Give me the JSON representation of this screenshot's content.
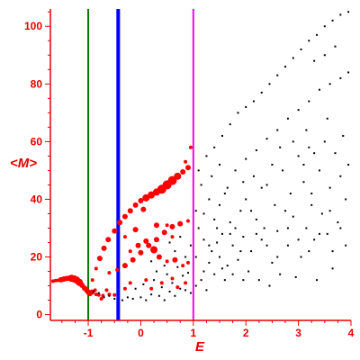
{
  "chart_data": {
    "type": "scatter",
    "title": "",
    "xlabel": "E",
    "ylabel": "<M>",
    "xlim": [
      -1.72,
      4.0
    ],
    "ylim": [
      -2,
      106
    ],
    "x_ticks": [
      -1,
      0,
      1,
      2,
      3,
      4
    ],
    "y_ticks": [
      0,
      20,
      40,
      60,
      80,
      100
    ],
    "grid": false,
    "legend": "none",
    "colors": {
      "axis": "#e60000",
      "red_series": "#ff0000",
      "black_series": "#000000",
      "line_green": "#007a00",
      "line_blue": "#0000ff",
      "line_magenta": "#ff00ff"
    },
    "vertical_lines": [
      {
        "x": -1.0,
        "color": "#007a00",
        "width": 2
      },
      {
        "x": -0.43,
        "color": "#0000ff",
        "width": 4
      },
      {
        "x": 1.0,
        "color": "#ff00ff",
        "width": 2
      }
    ],
    "series": [
      {
        "color": "#ff0000",
        "points": [
          [
            -1.67,
            11.6,
            2
          ],
          [
            -1.62,
            11.8,
            2
          ],
          [
            -1.57,
            11.9,
            2
          ],
          [
            -1.52,
            12.1,
            3
          ],
          [
            -1.47,
            12.3,
            3
          ],
          [
            -1.42,
            12.5,
            3
          ],
          [
            -1.37,
            12.6,
            3
          ],
          [
            -1.32,
            12.6,
            4
          ],
          [
            -1.27,
            12.4,
            4
          ],
          [
            -1.22,
            12.0,
            4
          ],
          [
            -1.17,
            11.2,
            4
          ],
          [
            -1.12,
            10.2,
            3
          ],
          [
            -1.07,
            9.2,
            3
          ],
          [
            -1.03,
            8.5,
            3
          ],
          [
            -1.0,
            7.8,
            3
          ],
          [
            -0.97,
            7.3,
            3
          ],
          [
            -0.93,
            7.8,
            3
          ],
          [
            -0.87,
            8.5,
            2
          ],
          [
            -0.8,
            6.8,
            2
          ],
          [
            -0.72,
            6.6,
            2
          ],
          [
            -0.6,
            7.0,
            2
          ],
          [
            -0.5,
            6.8,
            2
          ],
          [
            -0.92,
            12.0,
            2
          ],
          [
            -0.85,
            16.0,
            2
          ],
          [
            -0.78,
            19.5,
            3
          ],
          [
            -0.7,
            23.0,
            3
          ],
          [
            -0.62,
            26.0,
            3
          ],
          [
            -0.5,
            29.0,
            3
          ],
          [
            -0.4,
            32.0,
            3
          ],
          [
            -0.3,
            34.0,
            3
          ],
          [
            -0.2,
            36.0,
            3
          ],
          [
            -0.1,
            38.0,
            3
          ],
          [
            0.0,
            39.5,
            3
          ],
          [
            0.1,
            40.5,
            4
          ],
          [
            0.2,
            41.5,
            4
          ],
          [
            0.3,
            42.5,
            4
          ],
          [
            0.4,
            43.5,
            5
          ],
          [
            0.5,
            45.0,
            5
          ],
          [
            0.6,
            46.5,
            5
          ],
          [
            0.7,
            48.0,
            4
          ],
          [
            0.8,
            49.5,
            3
          ],
          [
            0.9,
            51.0,
            3
          ],
          [
            0.95,
            58.0,
            2
          ],
          [
            0.85,
            53.0,
            2
          ],
          [
            -0.6,
            14.5,
            2
          ],
          [
            -0.45,
            15.5,
            2
          ],
          [
            -0.3,
            17.0,
            3
          ],
          [
            -0.15,
            19.0,
            3
          ],
          [
            0.0,
            21.5,
            3
          ],
          [
            0.15,
            24.0,
            3
          ],
          [
            0.3,
            26.0,
            3
          ],
          [
            0.45,
            28.5,
            3
          ],
          [
            0.6,
            30.5,
            3
          ],
          [
            0.75,
            31.5,
            3
          ],
          [
            0.9,
            32.5,
            2
          ],
          [
            0.3,
            31.0,
            3
          ],
          [
            0.5,
            31.0,
            2
          ],
          [
            0.6,
            27.0,
            2
          ],
          [
            -0.2,
            22.0,
            2
          ],
          [
            -0.05,
            24.0,
            3
          ],
          [
            0.1,
            25.5,
            3
          ],
          [
            0.25,
            22.5,
            4
          ],
          [
            0.35,
            20.0,
            3
          ],
          [
            0.5,
            18.5,
            2
          ],
          [
            0.65,
            19.0,
            3
          ],
          [
            0.8,
            17.0,
            2
          ],
          [
            0.9,
            18.0,
            2
          ],
          [
            -0.3,
            27.0,
            2
          ],
          [
            -0.1,
            29.5,
            3
          ],
          [
            0.05,
            36.5,
            3
          ],
          [
            -0.85,
            7.0,
            2
          ],
          [
            -0.75,
            5.5,
            2
          ],
          [
            -0.65,
            8.5,
            2
          ],
          [
            -0.3,
            9.0,
            2
          ],
          [
            -0.2,
            11.0,
            2
          ],
          [
            0.1,
            12.0,
            2
          ],
          [
            0.2,
            9.0,
            2
          ],
          [
            0.4,
            11.0,
            2
          ],
          [
            0.6,
            12.5,
            2
          ],
          [
            0.7,
            9.5,
            2
          ],
          [
            0.85,
            11.0,
            2
          ]
        ]
      },
      {
        "color": "#000000",
        "points": [
          [
            -0.9,
            8.0
          ],
          [
            -0.8,
            7.5
          ],
          [
            -0.7,
            6.0
          ],
          [
            -0.6,
            6.5
          ],
          [
            -0.5,
            5.5
          ],
          [
            -0.35,
            5.0
          ],
          [
            -0.25,
            6.0
          ],
          [
            -0.15,
            5.5
          ],
          [
            0.0,
            6.0
          ],
          [
            0.1,
            5.0
          ],
          [
            0.2,
            7.0
          ],
          [
            0.35,
            6.5
          ],
          [
            0.45,
            5.0
          ],
          [
            0.55,
            8.0
          ],
          [
            0.65,
            6.5
          ],
          [
            0.75,
            9.0
          ],
          [
            0.85,
            8.5
          ],
          [
            0.95,
            7.5
          ],
          [
            -0.1,
            9.0
          ],
          [
            0.05,
            10.5
          ],
          [
            0.25,
            12.0
          ],
          [
            0.4,
            9.5
          ],
          [
            0.6,
            11.0
          ],
          [
            0.8,
            13.5
          ],
          [
            0.3,
            15.0
          ],
          [
            0.5,
            14.0
          ],
          [
            0.7,
            16.5
          ],
          [
            0.9,
            14.5
          ],
          [
            0.2,
            18.5
          ],
          [
            0.45,
            17.0
          ],
          [
            0.65,
            22.0
          ],
          [
            0.85,
            20.0
          ],
          [
            0.55,
            25.0
          ],
          [
            0.75,
            27.0
          ],
          [
            0.95,
            24.0
          ],
          [
            1.05,
            10.0
          ],
          [
            1.15,
            12.0
          ],
          [
            1.2,
            15.0
          ],
          [
            1.25,
            8.5
          ],
          [
            1.3,
            18.0
          ],
          [
            1.35,
            22.0
          ],
          [
            1.4,
            14.0
          ],
          [
            1.45,
            25.0
          ],
          [
            1.5,
            20.0
          ],
          [
            1.55,
            28.0
          ],
          [
            1.6,
            12.0
          ],
          [
            1.65,
            17.0
          ],
          [
            1.7,
            32.0
          ],
          [
            1.75,
            24.0
          ],
          [
            1.8,
            30.0
          ],
          [
            1.85,
            19.0
          ],
          [
            1.9,
            36.0
          ],
          [
            1.95,
            27.0
          ],
          [
            1.1,
            30.0
          ],
          [
            1.2,
            35.0
          ],
          [
            1.3,
            40.0
          ],
          [
            1.4,
            33.0
          ],
          [
            1.5,
            38.0
          ],
          [
            1.6,
            42.0
          ],
          [
            1.1,
            50.0
          ],
          [
            1.25,
            55.0
          ],
          [
            1.4,
            58.0
          ],
          [
            1.55,
            62.0
          ],
          [
            1.7,
            66.0
          ],
          [
            1.85,
            70.0
          ],
          [
            2.0,
            72.0
          ],
          [
            2.15,
            74.0
          ],
          [
            2.3,
            77.0
          ],
          [
            2.45,
            80.0
          ],
          [
            2.6,
            83.0
          ],
          [
            2.75,
            86.0
          ],
          [
            2.9,
            89.0
          ],
          [
            3.05,
            92.0
          ],
          [
            3.2,
            95.0
          ],
          [
            3.35,
            97.0
          ],
          [
            3.5,
            100.0
          ],
          [
            3.65,
            102.0
          ],
          [
            3.8,
            104.0
          ],
          [
            3.95,
            105.0
          ],
          [
            2.0,
            54.0
          ],
          [
            2.2,
            57.0
          ],
          [
            2.4,
            61.0
          ],
          [
            2.6,
            64.0
          ],
          [
            2.8,
            68.0
          ],
          [
            3.0,
            71.0
          ],
          [
            3.2,
            74.0
          ],
          [
            3.4,
            78.0
          ],
          [
            3.6,
            80.0
          ],
          [
            3.8,
            82.0
          ],
          [
            3.95,
            84.0
          ],
          [
            3.5,
            90.0
          ],
          [
            3.7,
            93.0
          ],
          [
            3.3,
            88.0
          ],
          [
            2.0,
            40.0
          ],
          [
            2.1,
            22.0
          ],
          [
            2.2,
            33.0
          ],
          [
            2.3,
            26.0
          ],
          [
            2.4,
            45.0
          ],
          [
            2.5,
            18.0
          ],
          [
            2.55,
            38.0
          ],
          [
            2.6,
            29.0
          ],
          [
            2.7,
            50.0
          ],
          [
            2.8,
            24.0
          ],
          [
            2.85,
            42.0
          ],
          [
            2.9,
            34.0
          ],
          [
            3.0,
            55.0
          ],
          [
            3.05,
            20.0
          ],
          [
            3.1,
            46.0
          ],
          [
            3.15,
            30.0
          ],
          [
            3.2,
            58.0
          ],
          [
            3.25,
            38.0
          ],
          [
            3.3,
            26.0
          ],
          [
            3.4,
            50.0
          ],
          [
            3.45,
            35.0
          ],
          [
            3.5,
            60.0
          ],
          [
            3.55,
            28.0
          ],
          [
            3.6,
            44.0
          ],
          [
            3.7,
            56.0
          ],
          [
            3.75,
            32.0
          ],
          [
            3.8,
            48.0
          ],
          [
            3.85,
            62.0
          ],
          [
            3.9,
            40.0
          ],
          [
            3.95,
            52.0
          ],
          [
            2.05,
            15.0
          ],
          [
            2.25,
            12.0
          ],
          [
            2.45,
            10.0
          ],
          [
            2.65,
            14.0
          ],
          [
            2.95,
            13.0
          ],
          [
            3.35,
            12.0
          ],
          [
            3.65,
            16.0
          ],
          [
            2.35,
            30.0
          ],
          [
            2.75,
            36.0
          ],
          [
            3.25,
            42.0
          ],
          [
            3.65,
            22.0
          ],
          [
            2.15,
            48.0
          ],
          [
            2.65,
            58.0
          ],
          [
            3.15,
            64.0
          ],
          [
            3.55,
            68.0
          ],
          [
            1.05,
            36.0
          ],
          [
            1.15,
            45.0
          ],
          [
            1.35,
            48.0
          ],
          [
            1.5,
            52.0
          ],
          [
            1.65,
            44.0
          ],
          [
            1.8,
            50.0
          ],
          [
            1.95,
            46.0
          ],
          [
            1.2,
            26.0
          ],
          [
            1.45,
            30.0
          ],
          [
            1.7,
            28.0
          ],
          [
            1.9,
            22.0
          ],
          [
            1.05,
            20.0
          ],
          [
            1.3,
            24.0
          ],
          [
            1.55,
            16.0
          ],
          [
            1.75,
            14.0
          ],
          [
            1.95,
            12.0
          ],
          [
            2.2,
            28.0
          ],
          [
            2.4,
            24.0
          ],
          [
            2.6,
            20.0
          ],
          [
            2.8,
            30.0
          ],
          [
            3.0,
            26.0
          ],
          [
            3.2,
            22.0
          ],
          [
            3.4,
            28.0
          ],
          [
            3.6,
            36.0
          ],
          [
            3.8,
            30.0
          ],
          [
            3.9,
            24.0
          ],
          [
            2.9,
            60.0
          ],
          [
            3.1,
            52.0
          ],
          [
            3.3,
            56.0
          ],
          [
            2.5,
            52.0
          ],
          [
            2.3,
            44.0
          ],
          [
            2.1,
            36.0
          ]
        ]
      }
    ]
  }
}
